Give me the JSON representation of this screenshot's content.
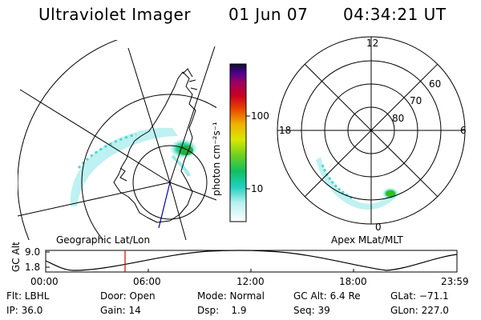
{
  "header": {
    "title": "Ultraviolet Imager",
    "date": "01 Jun 07",
    "time": "04:34:21 UT"
  },
  "colorbar": {
    "unit_label": "photon cm⁻²s⁻¹",
    "tick_100": "100",
    "tick_10": "10"
  },
  "left_panel": {
    "caption": "Geographic Lat/Lon"
  },
  "right_panel": {
    "caption": "Apex MLat/MLT",
    "hour_labels": {
      "top": "12",
      "right": "6",
      "bottom": "0",
      "left": "18"
    },
    "lat_labels": {
      "l60": "60",
      "l70": "70",
      "l80": "80"
    }
  },
  "altitude_plot": {
    "ylabel": "GC Alt",
    "ytick_top": "9.0",
    "ytick_bottom": "1.8",
    "xticks": [
      "00:00",
      "06:00",
      "12:00",
      "18:00",
      "23:59"
    ],
    "marker_color": "#e00000"
  },
  "info": {
    "filter": "Flt: LBHL",
    "ip": "IP: 36.0",
    "door": "Door: Open",
    "gain": "Gain: 14",
    "mode": "Mode: Normal",
    "dsp": "Dsp:    1.9",
    "gc_alt": "GC Alt: 6.4 Re",
    "seq": "Seq: 39",
    "glat": "GLat: −71.1",
    "glon": "GLon: 227.0"
  }
}
